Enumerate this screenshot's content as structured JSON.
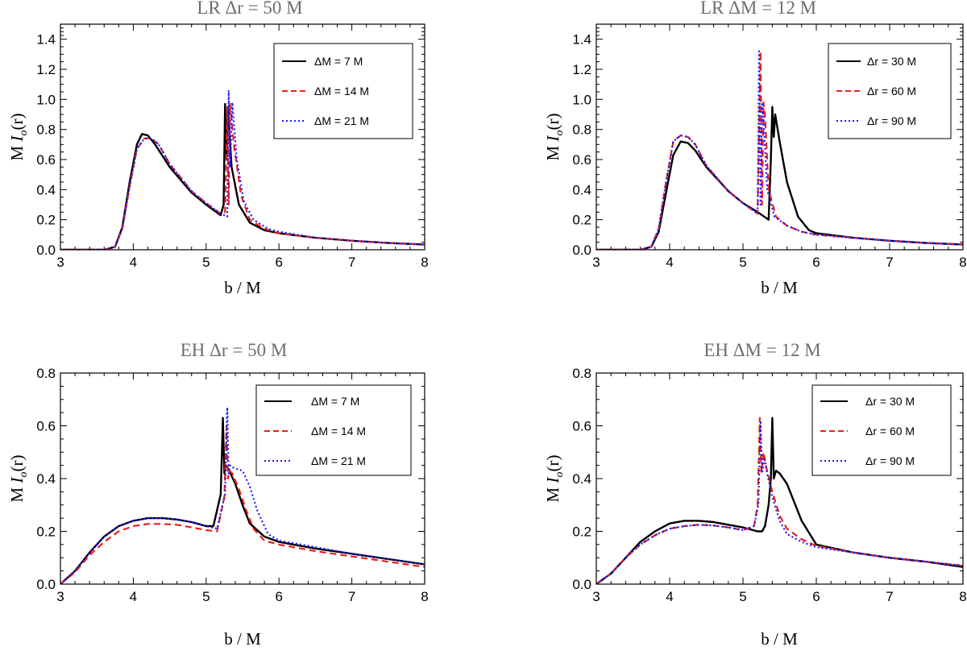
{
  "chart_data": [
    {
      "type": "line",
      "title": "LR   Δr = 50 M",
      "xlabel": "b / M",
      "ylabel_prefix": "M",
      "ylabel_var": "I",
      "ylabel_sub": "o",
      "ylabel_suffix": "(r)",
      "xlim": [
        3,
        8
      ],
      "ylim": [
        0,
        1.5
      ],
      "xticks": [
        "3",
        "4",
        "5",
        "6",
        "7",
        "8"
      ],
      "yticks": [
        "0.0",
        "0.2",
        "0.4",
        "0.6",
        "0.8",
        "1.0",
        "1.2",
        "1.4"
      ],
      "series": [
        {
          "name": "ΔM = 7 M",
          "color": "#000000",
          "dash": "solid",
          "x": [
            3,
            3.6,
            3.75,
            3.85,
            3.95,
            4.05,
            4.12,
            4.2,
            4.3,
            4.5,
            4.8,
            5.0,
            5.2,
            5.24,
            5.26,
            5.28,
            5.3,
            5.35,
            5.45,
            5.6,
            5.8,
            6,
            6.5,
            7,
            7.5,
            8
          ],
          "y": [
            0,
            0,
            0.02,
            0.15,
            0.45,
            0.7,
            0.77,
            0.76,
            0.7,
            0.55,
            0.38,
            0.3,
            0.23,
            0.3,
            0.97,
            0.6,
            0.95,
            0.55,
            0.3,
            0.18,
            0.13,
            0.11,
            0.08,
            0.06,
            0.045,
            0.035
          ]
        },
        {
          "name": "ΔM = 14 M",
          "color": "#e8201b",
          "dash": "dashed",
          "x": [
            3,
            3.6,
            3.75,
            3.85,
            3.95,
            4.05,
            4.15,
            4.25,
            4.35,
            4.5,
            4.8,
            5.0,
            5.2,
            5.26,
            5.29,
            5.31,
            5.33,
            5.38,
            5.48,
            5.6,
            5.8,
            6,
            6.5,
            7,
            7.5,
            8
          ],
          "y": [
            0,
            0,
            0.02,
            0.14,
            0.42,
            0.67,
            0.74,
            0.74,
            0.7,
            0.57,
            0.39,
            0.31,
            0.24,
            0.25,
            0.95,
            0.3,
            0.97,
            0.7,
            0.36,
            0.2,
            0.14,
            0.11,
            0.08,
            0.06,
            0.045,
            0.035
          ]
        },
        {
          "name": "ΔM = 21 M",
          "color": "#1a1aff",
          "dash": "dotted",
          "x": [
            3,
            3.6,
            3.75,
            3.85,
            3.95,
            4.05,
            4.15,
            4.25,
            4.35,
            4.5,
            4.8,
            5.0,
            5.2,
            5.29,
            5.31,
            5.33,
            5.36,
            5.42,
            5.52,
            5.65,
            5.85,
            6,
            6.5,
            7,
            7.5,
            8
          ],
          "y": [
            0,
            0,
            0.02,
            0.14,
            0.42,
            0.67,
            0.74,
            0.74,
            0.7,
            0.57,
            0.39,
            0.31,
            0.24,
            0.22,
            1.06,
            0.55,
            0.98,
            0.6,
            0.32,
            0.2,
            0.14,
            0.12,
            0.08,
            0.06,
            0.045,
            0.035
          ]
        }
      ]
    },
    {
      "type": "line",
      "title": "LR   ΔM = 12 M",
      "xlabel": "b / M",
      "ylabel_prefix": "M",
      "ylabel_var": "I",
      "ylabel_sub": "o",
      "ylabel_suffix": "(r)",
      "xlim": [
        3,
        8
      ],
      "ylim": [
        0,
        1.5
      ],
      "xticks": [
        "3",
        "4",
        "5",
        "6",
        "7",
        "8"
      ],
      "yticks": [
        "0.0",
        "0.2",
        "0.4",
        "0.6",
        "0.8",
        "1.0",
        "1.2",
        "1.4"
      ],
      "series": [
        {
          "name": "Δr = 30 M",
          "color": "#000000",
          "dash": "solid",
          "x": [
            3,
            3.6,
            3.75,
            3.85,
            3.95,
            4.05,
            4.15,
            4.25,
            4.35,
            4.5,
            4.8,
            5.0,
            5.2,
            5.35,
            5.38,
            5.4,
            5.42,
            5.44,
            5.5,
            5.6,
            5.75,
            5.9,
            6,
            6.5,
            7,
            7.5,
            8
          ],
          "y": [
            0,
            0,
            0.02,
            0.12,
            0.38,
            0.63,
            0.72,
            0.71,
            0.66,
            0.55,
            0.39,
            0.31,
            0.25,
            0.2,
            0.6,
            0.95,
            0.75,
            0.9,
            0.72,
            0.45,
            0.22,
            0.13,
            0.11,
            0.08,
            0.06,
            0.045,
            0.035
          ]
        },
        {
          "name": "Δr = 60 M",
          "color": "#e8201b",
          "dash": "dashed",
          "x": [
            3,
            3.6,
            3.75,
            3.85,
            3.95,
            4.05,
            4.15,
            4.25,
            4.35,
            4.5,
            4.8,
            5.0,
            5.2,
            5.24,
            5.26,
            5.28,
            5.3,
            5.35,
            5.45,
            5.6,
            5.8,
            6,
            6.5,
            7,
            7.5,
            8
          ],
          "y": [
            0,
            0,
            0.02,
            0.14,
            0.45,
            0.72,
            0.76,
            0.75,
            0.7,
            0.56,
            0.39,
            0.31,
            0.24,
            1.32,
            0.3,
            0.98,
            0.9,
            0.4,
            0.22,
            0.16,
            0.12,
            0.1,
            0.08,
            0.06,
            0.045,
            0.035
          ]
        },
        {
          "name": "Δr = 90 M",
          "color": "#1a1aff",
          "dash": "dotted",
          "x": [
            3,
            3.6,
            3.75,
            3.85,
            3.95,
            4.05,
            4.15,
            4.25,
            4.35,
            4.5,
            4.8,
            5.0,
            5.2,
            5.22,
            5.24,
            5.26,
            5.28,
            5.33,
            5.43,
            5.6,
            5.8,
            6,
            6.5,
            7,
            7.5,
            8
          ],
          "y": [
            0,
            0,
            0.02,
            0.14,
            0.45,
            0.72,
            0.76,
            0.75,
            0.7,
            0.56,
            0.39,
            0.31,
            0.24,
            1.32,
            0.3,
            0.98,
            0.88,
            0.4,
            0.22,
            0.16,
            0.12,
            0.1,
            0.08,
            0.06,
            0.045,
            0.035
          ]
        }
      ]
    },
    {
      "type": "line",
      "title": "EH   Δr = 50 M",
      "xlabel": "b / M",
      "ylabel_prefix": "M",
      "ylabel_var": "I",
      "ylabel_sub": "o",
      "ylabel_suffix": "(r)",
      "xlim": [
        3,
        8
      ],
      "ylim": [
        0,
        0.8
      ],
      "xticks": [
        "3",
        "4",
        "5",
        "6",
        "7",
        "8"
      ],
      "yticks": [
        "0.0",
        "0.2",
        "0.4",
        "0.6",
        "0.8"
      ],
      "series": [
        {
          "name": "ΔM = 7 M",
          "color": "#000000",
          "dash": "solid",
          "x": [
            3,
            3.2,
            3.4,
            3.6,
            3.8,
            4.0,
            4.2,
            4.4,
            4.6,
            4.8,
            5.0,
            5.1,
            5.2,
            5.23,
            5.25,
            5.27,
            5.3,
            5.4,
            5.5,
            5.6,
            5.8,
            6,
            6.5,
            7,
            7.5,
            8
          ],
          "y": [
            0,
            0.05,
            0.12,
            0.18,
            0.22,
            0.24,
            0.25,
            0.25,
            0.245,
            0.235,
            0.22,
            0.22,
            0.34,
            0.63,
            0.42,
            0.45,
            0.44,
            0.38,
            0.3,
            0.23,
            0.18,
            0.16,
            0.135,
            0.115,
            0.095,
            0.075
          ]
        },
        {
          "name": "ΔM = 14 M",
          "color": "#e8201b",
          "dash": "dashed",
          "x": [
            3,
            3.2,
            3.4,
            3.6,
            3.8,
            4.0,
            4.2,
            4.4,
            4.6,
            4.8,
            5.0,
            5.15,
            5.25,
            5.28,
            5.3,
            5.32,
            5.36,
            5.45,
            5.55,
            5.65,
            5.8,
            6,
            6.5,
            7,
            7.5,
            8
          ],
          "y": [
            0,
            0.045,
            0.11,
            0.16,
            0.2,
            0.22,
            0.228,
            0.228,
            0.225,
            0.215,
            0.205,
            0.2,
            0.33,
            0.6,
            0.4,
            0.43,
            0.42,
            0.36,
            0.28,
            0.21,
            0.165,
            0.15,
            0.125,
            0.105,
            0.085,
            0.065
          ]
        },
        {
          "name": "ΔM = 21 M",
          "color": "#1a1aff",
          "dash": "dotted",
          "x": [
            3,
            3.2,
            3.4,
            3.6,
            3.8,
            4.0,
            4.2,
            4.4,
            4.6,
            4.8,
            5.0,
            5.15,
            5.26,
            5.29,
            5.31,
            5.33,
            5.38,
            5.5,
            5.6,
            5.7,
            5.85,
            6,
            6.5,
            7,
            7.5,
            8
          ],
          "y": [
            0,
            0.05,
            0.12,
            0.18,
            0.22,
            0.24,
            0.25,
            0.25,
            0.245,
            0.235,
            0.22,
            0.21,
            0.34,
            0.67,
            0.42,
            0.45,
            0.44,
            0.43,
            0.37,
            0.28,
            0.19,
            0.165,
            0.14,
            0.115,
            0.095,
            0.075
          ]
        }
      ]
    },
    {
      "type": "line",
      "title": "EH   ΔM = 12 M",
      "xlabel": "b / M",
      "ylabel_prefix": "M",
      "ylabel_var": "I",
      "ylabel_sub": "o",
      "ylabel_suffix": "(r)",
      "xlim": [
        3,
        8
      ],
      "ylim": [
        0,
        0.8
      ],
      "xticks": [
        "3",
        "4",
        "5",
        "6",
        "7",
        "8"
      ],
      "yticks": [
        "0.0",
        "0.2",
        "0.4",
        "0.6",
        "0.8"
      ],
      "series": [
        {
          "name": "Δr = 30 M",
          "color": "#000000",
          "dash": "solid",
          "x": [
            3,
            3.2,
            3.4,
            3.6,
            3.8,
            4.0,
            4.2,
            4.4,
            4.6,
            4.8,
            5.0,
            5.2,
            5.26,
            5.3,
            5.35,
            5.38,
            5.4,
            5.42,
            5.45,
            5.5,
            5.6,
            5.8,
            6,
            6.5,
            7,
            7.5,
            8
          ],
          "y": [
            0,
            0.04,
            0.1,
            0.16,
            0.2,
            0.23,
            0.24,
            0.24,
            0.235,
            0.225,
            0.215,
            0.2,
            0.2,
            0.22,
            0.3,
            0.4,
            0.63,
            0.4,
            0.43,
            0.42,
            0.38,
            0.24,
            0.15,
            0.12,
            0.1,
            0.085,
            0.065
          ]
        },
        {
          "name": "Δr = 60 M",
          "color": "#e8201b",
          "dash": "dashed",
          "x": [
            3,
            3.2,
            3.4,
            3.6,
            3.8,
            4.0,
            4.2,
            4.4,
            4.6,
            4.8,
            5.0,
            5.15,
            5.2,
            5.23,
            5.25,
            5.28,
            5.32,
            5.4,
            5.5,
            5.6,
            5.8,
            6,
            6.5,
            7,
            7.5,
            8
          ],
          "y": [
            0,
            0.04,
            0.1,
            0.15,
            0.185,
            0.21,
            0.22,
            0.225,
            0.222,
            0.215,
            0.205,
            0.22,
            0.3,
            0.63,
            0.42,
            0.5,
            0.44,
            0.35,
            0.26,
            0.21,
            0.17,
            0.145,
            0.12,
            0.1,
            0.085,
            0.07
          ]
        },
        {
          "name": "Δr = 90 M",
          "color": "#1a1aff",
          "dash": "dotted",
          "x": [
            3,
            3.2,
            3.4,
            3.6,
            3.8,
            4.0,
            4.2,
            4.4,
            4.6,
            4.8,
            5.0,
            5.15,
            5.21,
            5.24,
            5.26,
            5.29,
            5.33,
            5.4,
            5.5,
            5.6,
            5.8,
            6,
            6.5,
            7,
            7.5,
            8
          ],
          "y": [
            0,
            0.04,
            0.1,
            0.15,
            0.185,
            0.21,
            0.22,
            0.225,
            0.222,
            0.215,
            0.205,
            0.22,
            0.3,
            0.62,
            0.42,
            0.48,
            0.42,
            0.33,
            0.24,
            0.19,
            0.16,
            0.14,
            0.12,
            0.1,
            0.085,
            0.07
          ]
        }
      ]
    }
  ]
}
